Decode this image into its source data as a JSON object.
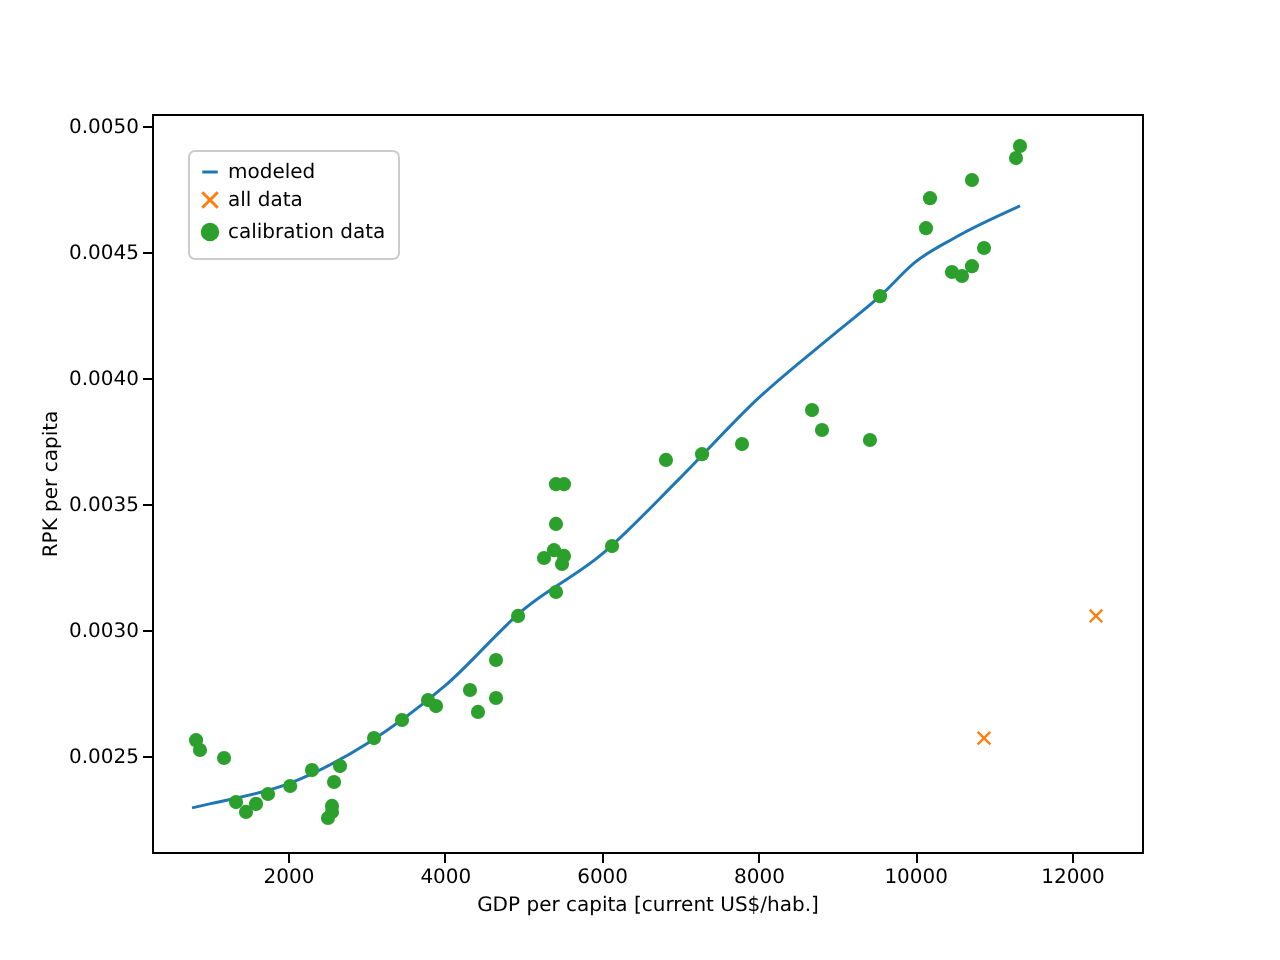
{
  "chart_data": {
    "type": "scatter",
    "xlabel": "GDP per capita [current US$/hab.]",
    "ylabel": "RPK per capita",
    "xlim": [
      265,
      12893
    ],
    "ylim": [
      0.002119,
      0.005048
    ],
    "xticks": [
      2000,
      4000,
      6000,
      8000,
      10000,
      12000
    ],
    "yticks": [
      {
        "value": 0.0025,
        "label": "0.0025"
      },
      {
        "value": 0.003,
        "label": "0.0030"
      },
      {
        "value": 0.0035,
        "label": "0.0035"
      },
      {
        "value": 0.004,
        "label": "0.0040"
      },
      {
        "value": 0.0045,
        "label": "0.0045"
      },
      {
        "value": 0.005,
        "label": "0.0050"
      }
    ],
    "grid": false,
    "legend": "top left",
    "series": [
      {
        "name": "modeled",
        "type": "line",
        "color": "#1f77b4",
        "marker": "none",
        "x": [
          776,
          1000,
          2000,
          3000,
          4000,
          5000,
          6000,
          7000,
          8000,
          9000,
          9551,
          10000,
          10500,
          11337
        ],
        "values": [
          0.002294,
          0.00231,
          0.002389,
          0.002548,
          0.002778,
          0.00308,
          0.0033,
          0.003603,
          0.00392,
          0.004183,
          0.004325,
          0.00446,
          0.004556,
          0.004683
        ]
      },
      {
        "name": "all data",
        "color": "#ff7f0e",
        "marker": "cross",
        "x": [
          10878,
          12306
        ],
        "values": [
          0.002571,
          0.003056
        ]
      },
      {
        "name": "calibration data",
        "color": "#2ca02c",
        "marker": "circle",
        "x": [
          827,
          877,
          1184,
          1337,
          1464,
          1592,
          1745,
          2028,
          2306,
          2663,
          2587,
          2561,
          2510,
          2561,
          3097,
          3454,
          3786,
          3888,
          4321,
          4423,
          4653,
          4653,
          4934,
          5418,
          5265,
          5393,
          5495,
          5520,
          5418,
          5418,
          5520,
          6133,
          6821,
          7281,
          7791,
          8684,
          8811,
          9423,
          9551,
          10138,
          10189,
          10724,
          10469,
          10597,
          10724,
          10878,
          11286,
          11337
        ],
        "values": [
          0.002563,
          0.002524,
          0.002492,
          0.002317,
          0.002278,
          0.00231,
          0.002349,
          0.002381,
          0.002444,
          0.00246,
          0.002397,
          0.002302,
          0.002254,
          0.002278,
          0.002571,
          0.002643,
          0.002722,
          0.002698,
          0.002762,
          0.002675,
          0.00273,
          0.002881,
          0.003056,
          0.003151,
          0.003286,
          0.003317,
          0.003262,
          0.003294,
          0.003421,
          0.003579,
          0.003579,
          0.003333,
          0.003675,
          0.003698,
          0.003738,
          0.003873,
          0.003794,
          0.003754,
          0.004325,
          0.004595,
          0.004714,
          0.004786,
          0.004421,
          0.004405,
          0.004444,
          0.004516,
          0.004873,
          0.004921
        ]
      }
    ]
  }
}
